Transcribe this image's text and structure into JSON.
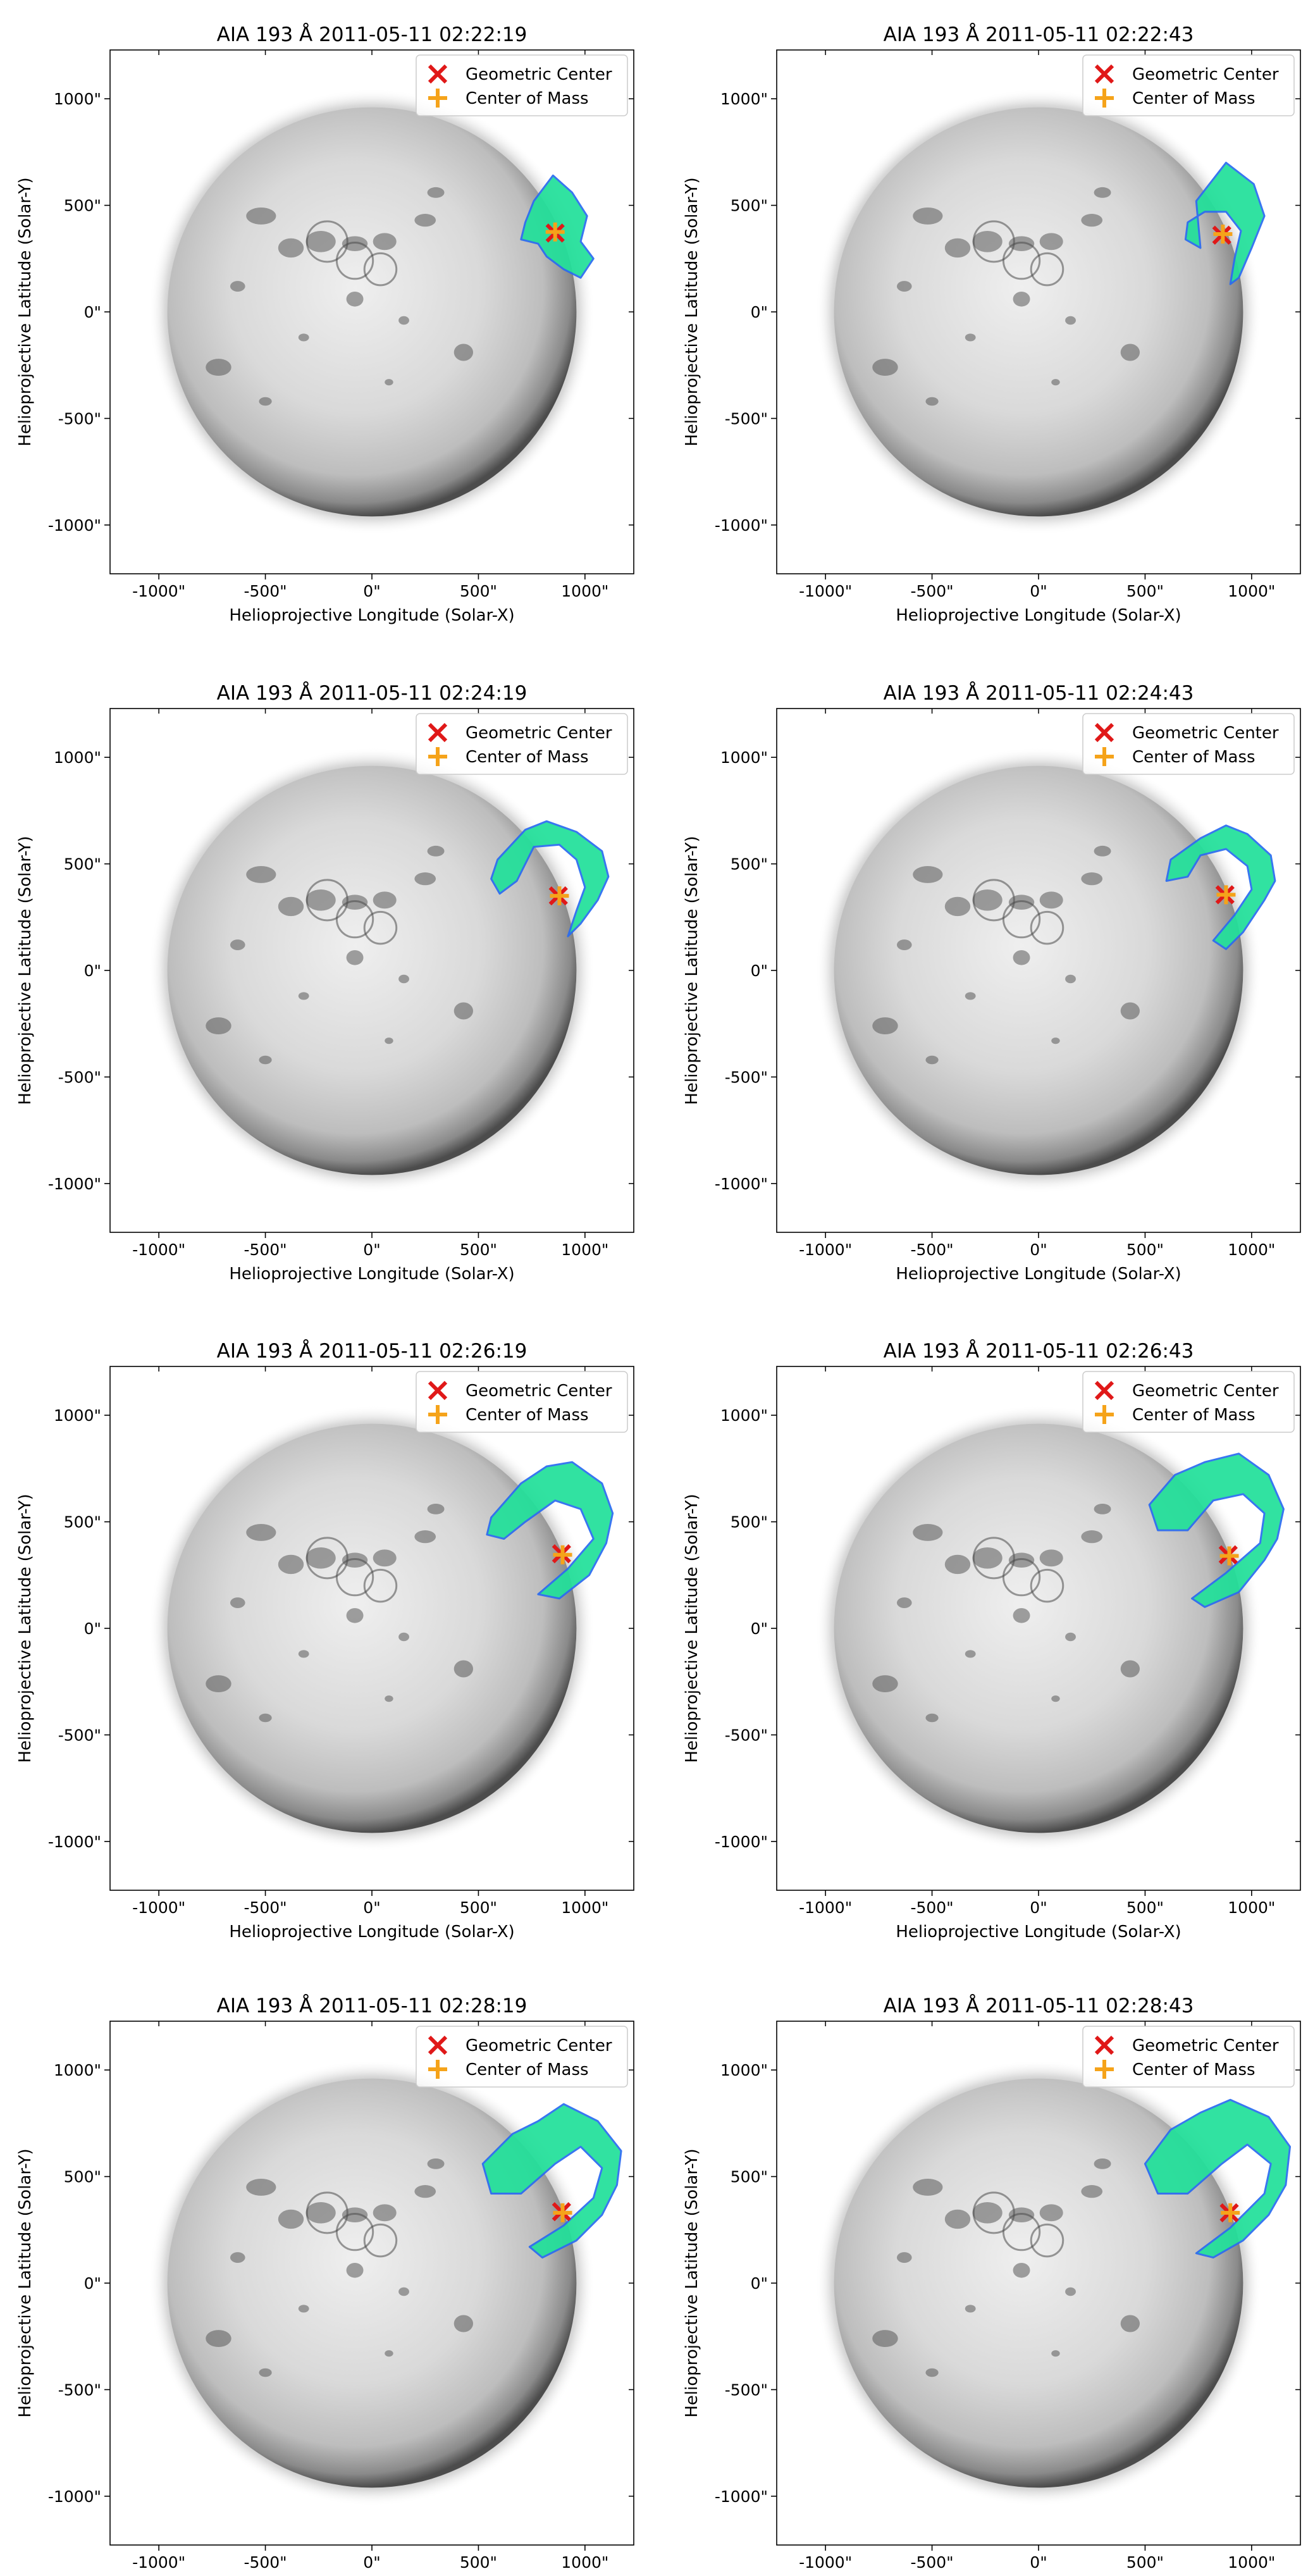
{
  "figure": {
    "rows": 4,
    "cols": 2
  },
  "colors": {
    "geometric_center": "#e01818",
    "center_of_mass": "#f5a31a",
    "mask_fill": "#22e09a",
    "mask_edge": "#2a6cf0",
    "disk_mid": "#d8d8d8",
    "disk_rim": "#545454"
  },
  "legend": {
    "placement": "top-right",
    "entries": [
      {
        "label": "Geometric Center",
        "marker": "x",
        "color": "#e01818"
      },
      {
        "label": "Center of Mass",
        "marker": "+",
        "color": "#f5a31a"
      }
    ]
  },
  "chart_data": [
    {
      "type": "scatter",
      "title": "AIA 193 Å 2011-05-11 02:22:19",
      "xlabel": "Helioprojective Longitude (Solar-X)",
      "ylabel": "Helioprojective Latitude (Solar-Y)",
      "xlim": [
        -1229,
        1229
      ],
      "ylim": [
        -1229,
        1229
      ],
      "xticks": [
        -1000,
        -500,
        0,
        500,
        1000
      ],
      "xticklabels": [
        "-1000\"",
        "-500\"",
        "0\"",
        "500\"",
        "1000\""
      ],
      "yticks": [
        1000,
        500,
        0,
        -500,
        -1000
      ],
      "yticklabels": [
        "1000\"",
        "500\"",
        "0\"",
        "-500\"",
        "-1000\""
      ],
      "series": [
        {
          "name": "Geometric Center",
          "x": [
            860
          ],
          "y": [
            370
          ]
        },
        {
          "name": "Center of Mass",
          "x": [
            860
          ],
          "y": [
            375
          ]
        }
      ]
    },
    {
      "type": "scatter",
      "title": "AIA 193 Å 2011-05-11 02:22:43",
      "xlabel": "Helioprojective Longitude (Solar-X)",
      "ylabel": "Helioprojective Latitude (Solar-Y)",
      "xlim": [
        -1229,
        1229
      ],
      "ylim": [
        -1229,
        1229
      ],
      "xticks": [
        -1000,
        -500,
        0,
        500,
        1000
      ],
      "xticklabels": [
        "-1000\"",
        "-500\"",
        "0\"",
        "500\"",
        "1000\""
      ],
      "yticks": [
        1000,
        500,
        0,
        -500,
        -1000
      ],
      "yticklabels": [
        "1000\"",
        "500\"",
        "0\"",
        "-500\"",
        "-1000\""
      ],
      "series": [
        {
          "name": "Geometric Center",
          "x": [
            860
          ],
          "y": [
            360
          ]
        },
        {
          "name": "Center of Mass",
          "x": [
            865
          ],
          "y": [
            365
          ]
        }
      ]
    },
    {
      "type": "scatter",
      "title": "AIA 193 Å 2011-05-11 02:24:19",
      "xlabel": "Helioprojective Longitude (Solar-X)",
      "ylabel": "Helioprojective Latitude (Solar-Y)",
      "xlim": [
        -1229,
        1229
      ],
      "ylim": [
        -1229,
        1229
      ],
      "xticks": [
        -1000,
        -500,
        0,
        500,
        1000
      ],
      "xticklabels": [
        "-1000\"",
        "-500\"",
        "0\"",
        "500\"",
        "1000\""
      ],
      "yticks": [
        1000,
        500,
        0,
        -500,
        -1000
      ],
      "yticklabels": [
        "1000\"",
        "500\"",
        "0\"",
        "-500\"",
        "-1000\""
      ],
      "series": [
        {
          "name": "Geometric Center",
          "x": [
            875
          ],
          "y": [
            350
          ]
        },
        {
          "name": "Center of Mass",
          "x": [
            880
          ],
          "y": [
            350
          ]
        }
      ]
    },
    {
      "type": "scatter",
      "title": "AIA 193 Å 2011-05-11 02:24:43",
      "xlabel": "Helioprojective Longitude (Solar-X)",
      "ylabel": "Helioprojective Latitude (Solar-Y)",
      "xlim": [
        -1229,
        1229
      ],
      "ylim": [
        -1229,
        1229
      ],
      "xticks": [
        -1000,
        -500,
        0,
        500,
        1000
      ],
      "xticklabels": [
        "-1000\"",
        "-500\"",
        "0\"",
        "500\"",
        "1000\""
      ],
      "yticks": [
        1000,
        500,
        0,
        -500,
        -1000
      ],
      "yticklabels": [
        "1000\"",
        "500\"",
        "0\"",
        "-500\"",
        "-1000\""
      ],
      "series": [
        {
          "name": "Geometric Center",
          "x": [
            875
          ],
          "y": [
            355
          ]
        },
        {
          "name": "Center of Mass",
          "x": [
            880
          ],
          "y": [
            355
          ]
        }
      ]
    },
    {
      "type": "scatter",
      "title": "AIA 193 Å 2011-05-11 02:26:19",
      "xlabel": "Helioprojective Longitude (Solar-X)",
      "ylabel": "Helioprojective Latitude (Solar-Y)",
      "xlim": [
        -1229,
        1229
      ],
      "ylim": [
        -1229,
        1229
      ],
      "xticks": [
        -1000,
        -500,
        0,
        500,
        1000
      ],
      "xticklabels": [
        "-1000\"",
        "-500\"",
        "0\"",
        "500\"",
        "1000\""
      ],
      "yticks": [
        1000,
        500,
        0,
        -500,
        -1000
      ],
      "yticklabels": [
        "1000\"",
        "500\"",
        "0\"",
        "-500\"",
        "-1000\""
      ],
      "series": [
        {
          "name": "Geometric Center",
          "x": [
            890
          ],
          "y": [
            350
          ]
        },
        {
          "name": "Center of Mass",
          "x": [
            895
          ],
          "y": [
            345
          ]
        }
      ]
    },
    {
      "type": "scatter",
      "title": "AIA 193 Å 2011-05-11 02:26:43",
      "xlabel": "Helioprojective Longitude (Solar-X)",
      "ylabel": "Helioprojective Latitude (Solar-Y)",
      "xlim": [
        -1229,
        1229
      ],
      "ylim": [
        -1229,
        1229
      ],
      "xticks": [
        -1000,
        -500,
        0,
        500,
        1000
      ],
      "xticklabels": [
        "-1000\"",
        "-500\"",
        "0\"",
        "500\"",
        "1000\""
      ],
      "yticks": [
        1000,
        500,
        0,
        -500,
        -1000
      ],
      "yticklabels": [
        "1000\"",
        "500\"",
        "0\"",
        "-500\"",
        "-1000\""
      ],
      "series": [
        {
          "name": "Geometric Center",
          "x": [
            890
          ],
          "y": [
            345
          ]
        },
        {
          "name": "Center of Mass",
          "x": [
            895
          ],
          "y": [
            340
          ]
        }
      ]
    },
    {
      "type": "scatter",
      "title": "AIA 193 Å 2011-05-11 02:28:19",
      "xlabel": "Helioprojective Longitude (Solar-X)",
      "ylabel": "Helioprojective Latitude (Solar-Y)",
      "xlim": [
        -1229,
        1229
      ],
      "ylim": [
        -1229,
        1229
      ],
      "xticks": [
        -1000,
        -500,
        0,
        500,
        1000
      ],
      "xticklabels": [
        "-1000\"",
        "-500\"",
        "0\"",
        "500\"",
        "1000\""
      ],
      "yticks": [
        1000,
        500,
        0,
        -500,
        -1000
      ],
      "yticklabels": [
        "1000\"",
        "500\"",
        "0\"",
        "-500\"",
        "-1000\""
      ],
      "series": [
        {
          "name": "Geometric Center",
          "x": [
            890
          ],
          "y": [
            335
          ]
        },
        {
          "name": "Center of Mass",
          "x": [
            895
          ],
          "y": [
            330
          ]
        }
      ]
    },
    {
      "type": "scatter",
      "title": "AIA 193 Å 2011-05-11 02:28:43",
      "xlabel": "Helioprojective Longitude (Solar-X)",
      "ylabel": "Helioprojective Latitude (Solar-Y)",
      "xlim": [
        -1229,
        1229
      ],
      "ylim": [
        -1229,
        1229
      ],
      "xticks": [
        -1000,
        -500,
        0,
        500,
        1000
      ],
      "xticklabels": [
        "-1000\"",
        "-500\"",
        "0\"",
        "500\"",
        "1000\""
      ],
      "yticks": [
        1000,
        500,
        0,
        -500,
        -1000
      ],
      "yticklabels": [
        "1000\"",
        "500\"",
        "0\"",
        "-500\"",
        "-1000\""
      ],
      "series": [
        {
          "name": "Geometric Center",
          "x": [
            895
          ],
          "y": [
            330
          ]
        },
        {
          "name": "Center of Mass",
          "x": [
            900
          ],
          "y": [
            330
          ]
        }
      ]
    }
  ]
}
